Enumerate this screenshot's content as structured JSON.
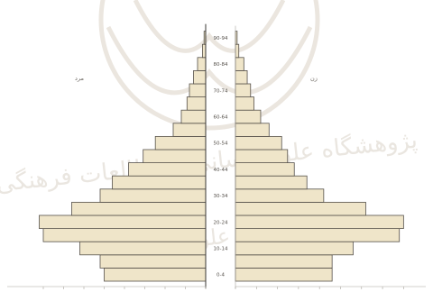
{
  "chart_data": {
    "type": "bar",
    "orientation": "horizontal-pyramid",
    "categories": [
      "0-4",
      "5-9",
      "10-14",
      "15-19",
      "20-24",
      "25-29",
      "30-34",
      "35-39",
      "40-44",
      "45-49",
      "50-54",
      "55-59",
      "60-64",
      "65-69",
      "70-74",
      "75-79",
      "80-84",
      "85-89",
      "90-94"
    ],
    "age_labels_shown": {
      "0": "0-4",
      "2": "10-14",
      "4": "20-24",
      "6": "30-34",
      "8": "40-44",
      "10": "50-54",
      "12": "60-64",
      "14": "70-74",
      "16": "80-84",
      "18": "90-94"
    },
    "series": [
      {
        "name": "مرد",
        "side": "left",
        "values": [
          12.5,
          13.0,
          15.5,
          20.0,
          20.5,
          16.5,
          13.0,
          11.5,
          9.5,
          7.7,
          6.2,
          4.0,
          3.0,
          2.3,
          2.0,
          1.5,
          1.0,
          0.4,
          0.2
        ]
      },
      {
        "name": "زن",
        "side": "right",
        "values": [
          11.5,
          11.5,
          14.0,
          19.5,
          20.0,
          15.5,
          10.5,
          8.5,
          7.0,
          6.2,
          5.5,
          4.0,
          3.0,
          2.2,
          1.8,
          1.4,
          1.0,
          0.4,
          0.2
        ]
      }
    ],
    "xlim": [
      0,
      22
    ],
    "watermark": {
      "lines": [
        "پژوهشگاه علوم انسانی و مطالعات فرهنگی",
        "پرتال جامع علوم انسانی"
      ]
    }
  }
}
